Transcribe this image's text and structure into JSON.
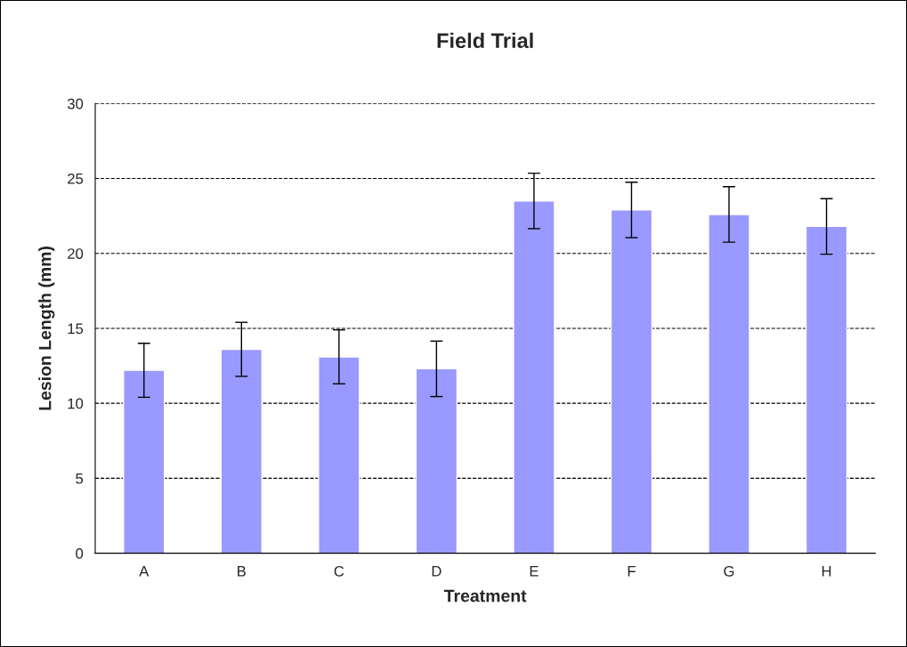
{
  "chart_data": {
    "type": "bar",
    "title": "Field Trial",
    "xlabel": "Treatment",
    "ylabel": "Lesion Length (mm)",
    "categories": [
      "A",
      "B",
      "C",
      "D",
      "E",
      "F",
      "G",
      "H"
    ],
    "values": [
      12.2,
      13.6,
      13.1,
      12.3,
      23.5,
      22.9,
      22.6,
      21.8
    ],
    "errors": [
      1.8,
      1.8,
      1.8,
      1.85,
      1.85,
      1.85,
      1.85,
      1.85
    ],
    "color": "#9999ff",
    "ylim": [
      0,
      30
    ],
    "yticks": [
      0,
      5,
      10,
      15,
      20,
      25,
      30
    ],
    "grid": "y",
    "line_style": "dashed"
  }
}
